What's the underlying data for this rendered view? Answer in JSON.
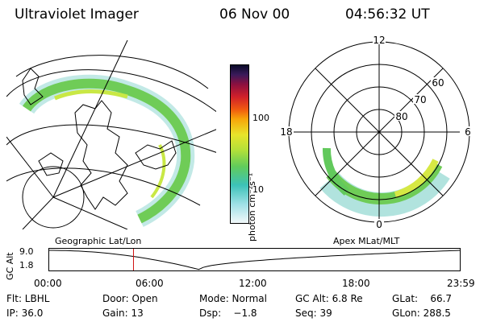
{
  "header": {
    "instrument": "Ultraviolet Imager",
    "date": "06 Nov 00",
    "time": "04:56:32 UT"
  },
  "colorbar": {
    "unit": "photon cm⁻²s⁻¹",
    "labels": [
      "100",
      "10"
    ]
  },
  "polar_plot": {
    "mlt_labels": [
      "12",
      "6",
      "0",
      "18"
    ],
    "lat_labels": [
      "60",
      "70",
      "80"
    ]
  },
  "timeline": {
    "left_label": "Geographic Lat/Lon",
    "right_label": "Apex MLat/MLT",
    "y_axis_label": "GC Alt",
    "y_ticks": [
      "9.0",
      "1.8"
    ],
    "x_ticks": [
      "00:00",
      "06:00",
      "12:00",
      "18:00",
      "23:59"
    ],
    "current_time_hours": 4.94
  },
  "info": {
    "filter": "Flt: LBHL",
    "ip": "IP: 36.0",
    "door": "Door: Open",
    "gain": "Gain: 13",
    "mode": "Mode: Normal",
    "dsp": "Dsp:    −1.8",
    "gc_alt": "GC Alt: 6.8 Re",
    "seq": "Seq: 39",
    "glat": "GLat:    66.7",
    "glon": "GLon: 288.5"
  }
}
